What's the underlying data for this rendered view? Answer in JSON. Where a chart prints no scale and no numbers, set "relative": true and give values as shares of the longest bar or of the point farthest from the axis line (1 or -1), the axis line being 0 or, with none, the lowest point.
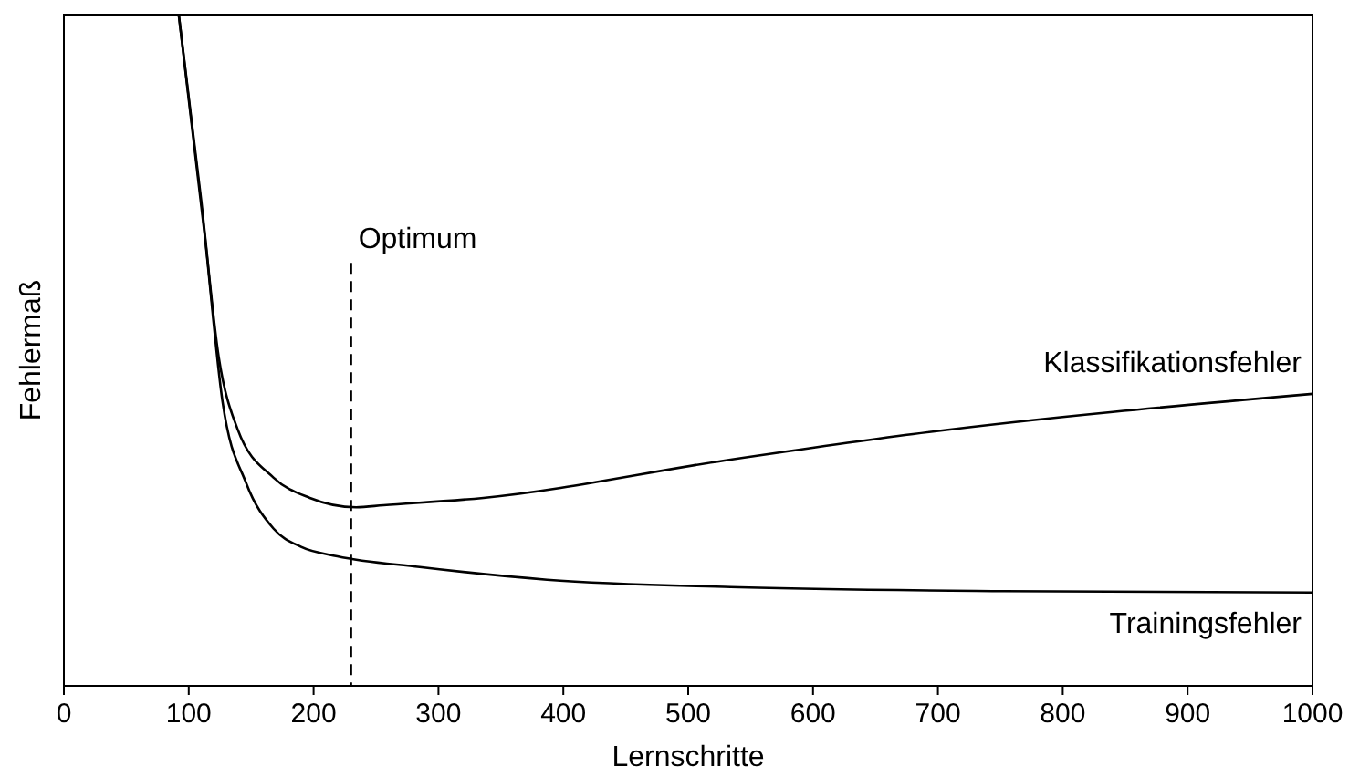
{
  "chart_data": {
    "type": "line",
    "xlabel": "Lernschritte",
    "ylabel": "Fehlermaß",
    "relative": true,
    "xlim": [
      0,
      1000
    ],
    "xticks": [
      0,
      100,
      200,
      300,
      400,
      500,
      600,
      700,
      800,
      900,
      1000
    ],
    "legend": false,
    "grid": false,
    "marker": "none",
    "line_style": "solid",
    "series": [
      {
        "name": "Klassifikationsfehler",
        "color": "#000000",
        "x": [
          92,
          110,
          124,
          139,
          168,
          197,
          234,
          256,
          336,
          534,
          680,
          1000
        ],
        "values": [
          1.0,
          0.723,
          0.49,
          0.383,
          0.31,
          0.28,
          0.266,
          0.269,
          0.28,
          0.337,
          0.375,
          0.435
        ]
      },
      {
        "name": "Trainingsfehler",
        "color": "#000000",
        "x": [
          92,
          113,
          127,
          146,
          168,
          190,
          219,
          285,
          387,
          534,
          753,
          1000
        ],
        "values": [
          1.0,
          0.668,
          0.424,
          0.302,
          0.234,
          0.207,
          0.193,
          0.177,
          0.158,
          0.147,
          0.141,
          0.139
        ]
      }
    ],
    "ref_lines": [
      {
        "axis": "x",
        "value": 230,
        "label": "Optimum",
        "line_style": "dashed",
        "color": "#000000"
      }
    ]
  }
}
